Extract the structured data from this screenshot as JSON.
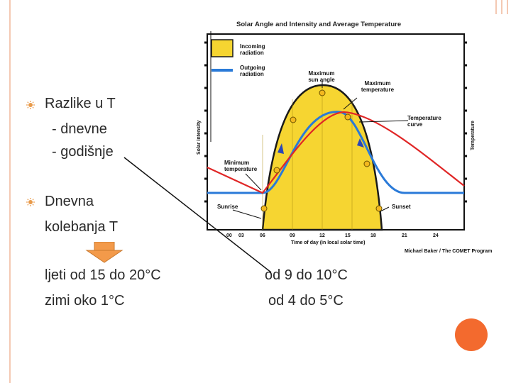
{
  "slide": {
    "bullets": [
      {
        "label": "Razlike u T",
        "sub": [
          "- dnevne",
          "- godišnje"
        ]
      },
      {
        "label": "Dnevna",
        "label2": "kolebanja T"
      }
    ],
    "summer_left": "ljeti od 15 do 20°C",
    "winter_left": "zimi oko 1°C",
    "summer_right": "od 9 do 10°C",
    "winter_right": "od 4 do 5°C",
    "accent_color": "#f39a4a"
  },
  "chart_data": {
    "type": "line",
    "title": "Solar Angle and Intensity and Average Temperature",
    "xlabel": "Time of day (in local solar time)",
    "ylabel_left": "Solar intensity",
    "ylabel_right": "Temperature",
    "x_ticks": [
      "00",
      "03",
      "06",
      "09",
      "12",
      "15",
      "18",
      "21",
      "24"
    ],
    "legend": [
      {
        "name": "Incoming radiation",
        "color": "#f6d531"
      },
      {
        "name": "Outgoing radiation",
        "color": "#2a7ad8"
      }
    ],
    "annotations": {
      "max_sun": "Maximum sun angle",
      "max_temp": "Maximum temperature",
      "temp_curve": "Temperature curve",
      "min_temp": "Minimum temperature",
      "sunrise": "Sunrise",
      "sunset": "Sunset"
    },
    "credit": "Michael Baker / The COMET Program"
  }
}
